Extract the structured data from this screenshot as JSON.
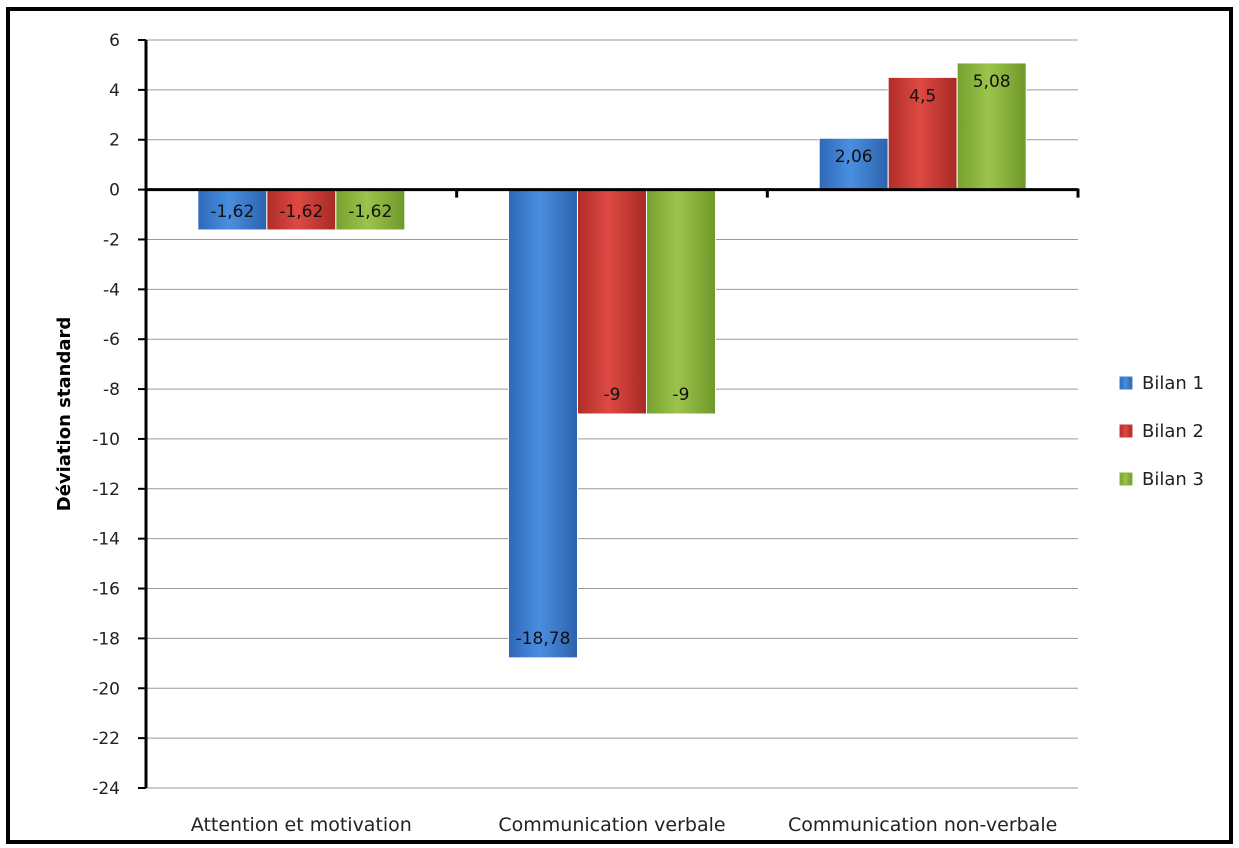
{
  "chart_data": {
    "type": "bar",
    "title": "",
    "xlabel": "",
    "ylabel": "Déviation  standard",
    "ylim": [
      -24,
      6
    ],
    "yticks": [
      6,
      4,
      2,
      0,
      -2,
      -4,
      -6,
      -8,
      -10,
      -12,
      -14,
      -16,
      -18,
      -20,
      -22,
      -24
    ],
    "grid": true,
    "legend_position": "right",
    "categories": [
      "Attention et motivation",
      "Communication verbale",
      "Communication non-verbale"
    ],
    "series": [
      {
        "name": "Bilan 1",
        "color": "#3f7fd0",
        "values": [
          -1.62,
          -18.78,
          2.06
        ],
        "labels": [
          "-1,62",
          "-18,78",
          "2,06"
        ]
      },
      {
        "name": "Bilan 2",
        "color": "#cc3a35",
        "values": [
          -1.62,
          -9,
          4.5
        ],
        "labels": [
          "-1,62",
          "-9",
          "4,5"
        ]
      },
      {
        "name": "Bilan 3",
        "color": "#8cb43c",
        "values": [
          -1.62,
          -9,
          5.08
        ],
        "labels": [
          "-1,62",
          "-9",
          "5,08"
        ]
      }
    ]
  }
}
